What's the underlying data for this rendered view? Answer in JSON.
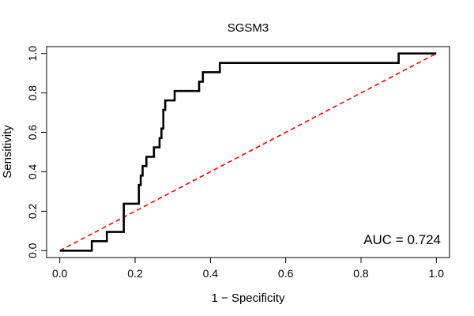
{
  "chart_data": {
    "type": "line",
    "title": "SGSM3",
    "xlabel": "1 − Specificity",
    "ylabel": "Sensitivity",
    "xlim": [
      -0.035,
      1.035
    ],
    "ylim": [
      -0.035,
      1.035
    ],
    "xticks": [
      0.0,
      0.2,
      0.4,
      0.6,
      0.8,
      1.0
    ],
    "yticks": [
      0.0,
      0.2,
      0.4,
      0.6,
      0.8,
      1.0
    ],
    "xtick_labels": [
      "0.0",
      "0.2",
      "0.4",
      "0.6",
      "0.8",
      "1.0"
    ],
    "ytick_labels": [
      "0.0",
      "0.2",
      "0.4",
      "0.6",
      "0.8",
      "1.0"
    ],
    "grid": false,
    "annotation": "AUC = 0.724",
    "colors": {
      "roc": "#000000",
      "reference": "#ff0000"
    },
    "series": [
      {
        "x": [
          0.0,
          0.085,
          0.085,
          0.125,
          0.125,
          0.17,
          0.17,
          0.21,
          0.21,
          0.215,
          0.215,
          0.22,
          0.22,
          0.23,
          0.23,
          0.25,
          0.25,
          0.265,
          0.265,
          0.27,
          0.27,
          0.275,
          0.275,
          0.28,
          0.28,
          0.29,
          0.29,
          0.305,
          0.305,
          0.37,
          0.37,
          0.375,
          0.375,
          0.38,
          0.38,
          0.425,
          0.425,
          0.9,
          0.9,
          1.0
        ],
        "y": [
          0.0,
          0.0,
          0.048,
          0.048,
          0.095,
          0.095,
          0.238,
          0.238,
          0.333,
          0.333,
          0.381,
          0.381,
          0.429,
          0.429,
          0.476,
          0.476,
          0.524,
          0.524,
          0.571,
          0.571,
          0.619,
          0.619,
          0.714,
          0.714,
          0.762,
          0.762,
          0.762,
          0.762,
          0.81,
          0.81,
          0.857,
          0.857,
          0.857,
          0.857,
          0.905,
          0.905,
          0.952,
          0.952,
          1.0,
          1.0
        ]
      },
      {
        "x": [
          0.0,
          1.0
        ],
        "y": [
          0.0,
          1.0
        ]
      }
    ]
  }
}
